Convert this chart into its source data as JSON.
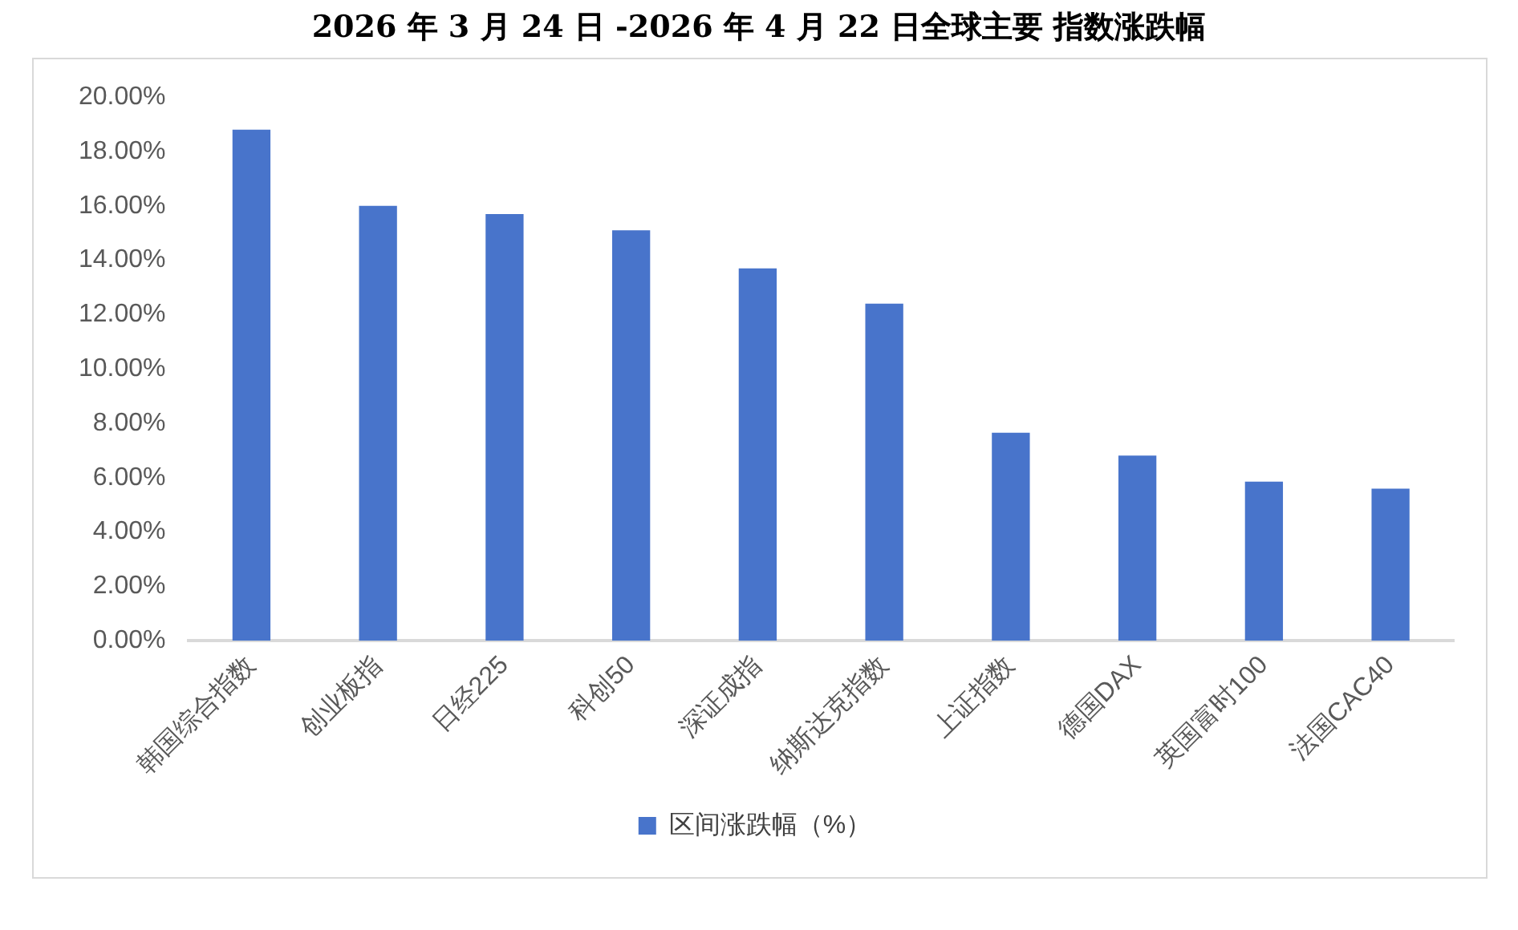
{
  "chart_data": {
    "type": "bar",
    "title": "2026 年 3 月 24 日 -2026 年 4 月 22 日全球主要 指数涨跌幅",
    "categories": [
      "韩国综合指数",
      "创业板指",
      "日经225",
      "科创50",
      "深证成指",
      "纳斯达克指数",
      "上证指数",
      "德国DAX",
      "英国富时100",
      "法国CAC40"
    ],
    "series": [
      {
        "name": "区间涨跌幅（%）",
        "color": "#4874cb",
        "values": [
          18.8,
          16.0,
          15.7,
          15.1,
          13.7,
          12.4,
          7.65,
          6.81,
          5.85,
          5.59
        ]
      }
    ],
    "ylim": [
      0,
      20
    ],
    "yticks": [
      {
        "value": 0,
        "label": "0.00%"
      },
      {
        "value": 2,
        "label": "2.00%"
      },
      {
        "value": 4,
        "label": "4.00%"
      },
      {
        "value": 6,
        "label": "6.00%"
      },
      {
        "value": 8,
        "label": "8.00%"
      },
      {
        "value": 10,
        "label": "10.00%"
      },
      {
        "value": 12,
        "label": "12.00%"
      },
      {
        "value": 14,
        "label": "14.00%"
      },
      {
        "value": 16,
        "label": "16.00%"
      },
      {
        "value": 18,
        "label": "18.00%"
      },
      {
        "value": 20,
        "label": "20.00%"
      }
    ],
    "legend": "bottom"
  }
}
